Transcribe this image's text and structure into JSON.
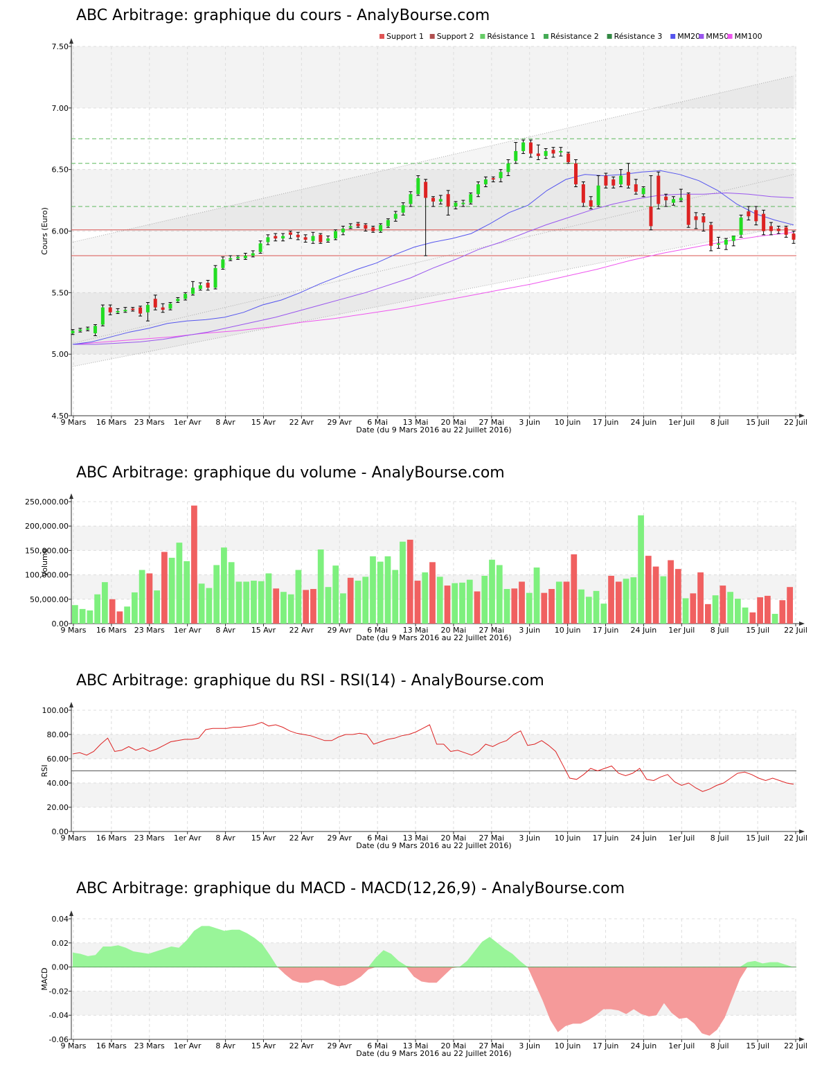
{
  "chart_data": [
    {
      "type": "candlestick",
      "title": "ABC Arbitrage: graphique du cours - AnalyBourse.com",
      "ylabel": "Cours (Euro)",
      "xlabel": "Date (du 9 Mars 2016 au 22 Juillet 2016)",
      "ylim": [
        4.5,
        7.5
      ],
      "yticks": [
        "4.50",
        "5.00",
        "5.50",
        "6.00",
        "6.50",
        "7.00",
        "7.50"
      ],
      "xticks": [
        "9 Mars",
        "16 Mars",
        "23 Mars",
        "1er Avr",
        "8 Avr",
        "15 Avr",
        "22 Avr",
        "29 Avr",
        "6 Mai",
        "13 Mai",
        "20 Mai",
        "27 Mai",
        "3 Juin",
        "10 Juin",
        "17 Juin",
        "24 Juin",
        "1er Juil",
        "8 Juil",
        "15 Juil",
        "22 Juil"
      ],
      "legend": [
        {
          "label": "Support 1",
          "color": "#e05555"
        },
        {
          "label": "Support 2",
          "color": "#b05050"
        },
        {
          "label": "Résistance 1",
          "color": "#66cc66"
        },
        {
          "label": "Résistance 2",
          "color": "#44aa55"
        },
        {
          "label": "Résistance 3",
          "color": "#338844"
        },
        {
          "label": "MM20",
          "color": "#5555ee"
        },
        {
          "label": "MM50",
          "color": "#9955ee"
        },
        {
          "label": "MM100",
          "color": "#ee55ee"
        }
      ],
      "support": [
        6.01,
        5.8
      ],
      "resistance": [
        6.2,
        6.55,
        6.75
      ],
      "close": [
        5.19,
        5.2,
        5.21,
        5.23,
        5.38,
        5.34,
        5.35,
        5.36,
        5.36,
        5.33,
        5.4,
        5.38,
        5.36,
        5.41,
        5.45,
        5.49,
        5.54,
        5.56,
        5.54,
        5.7,
        5.77,
        5.78,
        5.79,
        5.8,
        5.82,
        5.9,
        5.95,
        5.94,
        5.96,
        5.97,
        5.95,
        5.93,
        5.96,
        5.91,
        5.94,
        6.0,
        6.02,
        6.04,
        6.04,
        6.02,
        6.0,
        6.05,
        6.09,
        6.14,
        6.21,
        6.3,
        6.43,
        6.27,
        6.24,
        6.26,
        6.2,
        6.23,
        6.23,
        6.3,
        6.38,
        6.42,
        6.42,
        6.48,
        6.55,
        6.65,
        6.72,
        6.63,
        6.61,
        6.65,
        6.63,
        6.65,
        6.56,
        6.38,
        6.23,
        6.2,
        6.37,
        6.37,
        6.37,
        6.45,
        6.37,
        6.32,
        6.35,
        6.04,
        6.22,
        6.25,
        6.26,
        6.27,
        6.05,
        6.09,
        6.07,
        5.88,
        5.9,
        5.93,
        5.96,
        6.11,
        6.12,
        6.08,
        6.0,
        6.0,
        6.0,
        5.97,
        5.93
      ],
      "open": [
        5.17,
        5.19,
        5.2,
        5.17,
        5.24,
        5.38,
        5.34,
        5.35,
        5.37,
        5.38,
        5.34,
        5.45,
        5.38,
        5.37,
        5.43,
        5.45,
        5.49,
        5.53,
        5.58,
        5.54,
        5.7,
        5.78,
        5.79,
        5.78,
        5.8,
        5.83,
        5.91,
        5.96,
        5.94,
        5.99,
        5.97,
        5.95,
        5.92,
        5.97,
        5.92,
        5.94,
        5.99,
        6.04,
        6.06,
        6.05,
        6.03,
        6.0,
        6.04,
        6.1,
        6.15,
        6.22,
        6.3,
        6.4,
        6.27,
        6.24,
        6.3,
        6.2,
        6.23,
        6.23,
        6.3,
        6.38,
        6.43,
        6.43,
        6.48,
        6.57,
        6.65,
        6.72,
        6.63,
        6.61,
        6.66,
        6.65,
        6.63,
        6.55,
        6.38,
        6.25,
        6.21,
        6.45,
        6.42,
        6.38,
        6.48,
        6.38,
        6.3,
        6.2,
        6.45,
        6.28,
        6.23,
        6.25,
        6.3,
        6.12,
        6.12,
        6.05,
        5.9,
        5.89,
        5.92,
        5.97,
        6.16,
        6.17,
        6.14,
        6.04,
        6.02,
        6.03,
        5.98
      ],
      "high": [
        5.2,
        5.21,
        5.22,
        5.24,
        5.4,
        5.4,
        5.37,
        5.38,
        5.38,
        5.39,
        5.42,
        5.48,
        5.41,
        5.42,
        5.46,
        5.5,
        5.59,
        5.58,
        5.6,
        5.72,
        5.79,
        5.8,
        5.8,
        5.82,
        5.84,
        5.92,
        5.97,
        5.98,
        5.98,
        6.0,
        5.99,
        5.97,
        5.99,
        5.98,
        5.96,
        6.01,
        6.04,
        6.06,
        6.07,
        6.06,
        6.04,
        6.06,
        6.1,
        6.16,
        6.23,
        6.32,
        6.45,
        6.42,
        6.28,
        6.29,
        6.33,
        6.24,
        6.25,
        6.31,
        6.4,
        6.44,
        6.44,
        6.5,
        6.58,
        6.72,
        6.74,
        6.74,
        6.7,
        6.67,
        6.68,
        6.68,
        6.64,
        6.58,
        6.4,
        6.28,
        6.45,
        6.47,
        6.44,
        6.5,
        6.55,
        6.42,
        6.36,
        6.45,
        6.48,
        6.3,
        6.28,
        6.34,
        6.31,
        6.15,
        6.14,
        6.07,
        5.95,
        5.94,
        5.96,
        6.13,
        6.2,
        6.2,
        6.17,
        6.07,
        6.04,
        6.04,
        6.0
      ],
      "low": [
        5.16,
        5.18,
        5.19,
        5.15,
        5.23,
        5.32,
        5.33,
        5.34,
        5.35,
        5.31,
        5.27,
        5.36,
        5.34,
        5.36,
        5.42,
        5.44,
        5.48,
        5.52,
        5.52,
        5.53,
        5.69,
        5.76,
        5.77,
        5.77,
        5.79,
        5.82,
        5.89,
        5.92,
        5.92,
        5.94,
        5.93,
        5.91,
        5.9,
        5.9,
        5.91,
        5.93,
        5.97,
        6.02,
        6.03,
        6.0,
        5.99,
        5.99,
        6.03,
        6.08,
        6.13,
        6.2,
        6.29,
        5.8,
        6.2,
        6.22,
        6.13,
        6.18,
        6.2,
        6.22,
        6.28,
        6.36,
        6.4,
        6.4,
        6.45,
        6.55,
        6.63,
        6.6,
        6.58,
        6.59,
        6.6,
        6.61,
        6.55,
        6.36,
        6.2,
        6.18,
        6.2,
        6.35,
        6.35,
        6.36,
        6.35,
        6.3,
        6.28,
        6.01,
        6.18,
        6.2,
        6.21,
        6.24,
        6.03,
        6.02,
        6.0,
        5.84,
        5.86,
        5.85,
        5.88,
        5.95,
        6.09,
        6.05,
        5.97,
        5.97,
        5.98,
        5.95,
        5.9
      ],
      "mm20": [
        5.08,
        5.1,
        5.14,
        5.18,
        5.21,
        5.25,
        5.27,
        5.28,
        5.3,
        5.34,
        5.4,
        5.44,
        5.5,
        5.57,
        5.63,
        5.69,
        5.74,
        5.81,
        5.87,
        5.91,
        5.94,
        5.98,
        6.06,
        6.15,
        6.21,
        6.33,
        6.42,
        6.46,
        6.45,
        6.46,
        6.48,
        6.49,
        6.46,
        6.41,
        6.33,
        6.22,
        6.14,
        6.09,
        6.05
      ],
      "mm50": [
        5.08,
        5.08,
        5.09,
        5.1,
        5.12,
        5.15,
        5.18,
        5.22,
        5.26,
        5.3,
        5.35,
        5.4,
        5.45,
        5.5,
        5.56,
        5.62,
        5.7,
        5.77,
        5.85,
        5.91,
        5.98,
        6.05,
        6.11,
        6.17,
        6.22,
        6.26,
        6.29,
        6.3,
        6.3,
        6.31,
        6.3,
        6.28,
        6.27
      ],
      "mm100": [
        5.08,
        5.1,
        5.12,
        5.14,
        5.17,
        5.19,
        5.22,
        5.26,
        5.29,
        5.33,
        5.37,
        5.42,
        5.47,
        5.52,
        5.57,
        5.63,
        5.69,
        5.76,
        5.82,
        5.87,
        5.92,
        5.96,
        5.99
      ]
    },
    {
      "type": "bar",
      "title": "ABC Arbitrage: graphique du volume - AnalyBourse.com",
      "ylabel": "Volume",
      "xlabel": "Date (du 9 Mars 2016 au 22 Juillet 2016)",
      "ylim": [
        0,
        250000
      ],
      "yticks": [
        "0.00",
        "50,000.00",
        "100,000.00",
        "150,000.00",
        "200,000.00",
        "250,000.00"
      ],
      "xticks": [
        "9 Mars",
        "16 Mars",
        "23 Mars",
        "1er Avr",
        "8 Avr",
        "15 Avr",
        "22 Avr",
        "29 Avr",
        "6 Mai",
        "13 Mai",
        "20 Mai",
        "27 Mai",
        "3 Juin",
        "10 Juin",
        "17 Juin",
        "24 Juin",
        "1er Juil",
        "8 Juil",
        "15 Juil",
        "22 Juil"
      ],
      "values": [
        38000,
        30000,
        27000,
        60000,
        85000,
        50000,
        25000,
        35000,
        64000,
        110000,
        103000,
        68000,
        147000,
        135000,
        166000,
        128000,
        242000,
        82000,
        73000,
        120000,
        156000,
        126000,
        86000,
        86000,
        88000,
        87000,
        103000,
        72000,
        65000,
        60000,
        110000,
        69000,
        71000,
        152000,
        75000,
        119000,
        62000,
        94000,
        88000,
        96000,
        138000,
        127000,
        138000,
        110000,
        168000,
        172000,
        88000,
        105000,
        126000,
        96000,
        78000,
        83000,
        84000,
        90000,
        66000,
        98000,
        131000,
        120000,
        71000,
        72000,
        86000,
        63000,
        115000,
        63000,
        71000,
        86000,
        86000,
        142000,
        70000,
        55000,
        67000,
        41000,
        98000,
        86000,
        92000,
        95000,
        222000,
        139000,
        117000,
        97000,
        130000,
        112000,
        52000,
        62000,
        105000,
        40000,
        58000,
        78000,
        65000,
        51000,
        33000,
        23000,
        54000,
        57000,
        20000,
        48000,
        75000
      ],
      "up": [
        1,
        1,
        1,
        1,
        1,
        0,
        0,
        1,
        1,
        1,
        0,
        1,
        0,
        1,
        1,
        1,
        0,
        1,
        1,
        1,
        1,
        1,
        1,
        1,
        1,
        1,
        1,
        0,
        1,
        1,
        1,
        0,
        0,
        1,
        1,
        1,
        1,
        0,
        1,
        1,
        1,
        1,
        1,
        1,
        1,
        0,
        0,
        1,
        0,
        1,
        0,
        1,
        1,
        1,
        0,
        1,
        1,
        1,
        1,
        0,
        0,
        1,
        1,
        0,
        0,
        1,
        0,
        0,
        1,
        1,
        1,
        1,
        0,
        0,
        1,
        1,
        1,
        0,
        0,
        1,
        0,
        0,
        1,
        0,
        0,
        0,
        1,
        0,
        1,
        1,
        1,
        0,
        0,
        0,
        1,
        0,
        0
      ]
    },
    {
      "type": "line",
      "title": "ABC Arbitrage: graphique du RSI - RSI(14) - AnalyBourse.com",
      "ylabel": "RSI",
      "xlabel": "Date (du 9 Mars 2016 au 22 Juillet 2016)",
      "ylim": [
        0,
        100
      ],
      "yticks": [
        "0.00",
        "20.00",
        "40.00",
        "60.00",
        "80.00",
        "100.00"
      ],
      "xticks": [
        "9 Mars",
        "16 Mars",
        "23 Mars",
        "1er Avr",
        "8 Avr",
        "15 Avr",
        "22 Avr",
        "29 Avr",
        "6 Mai",
        "13 Mai",
        "20 Mai",
        "27 Mai",
        "3 Juin",
        "10 Juin",
        "17 Juin",
        "24 Juin",
        "1er Juil",
        "8 Juil",
        "15 Juil",
        "22 Juil"
      ],
      "reference": 50,
      "values": [
        64,
        65,
        63,
        66,
        72,
        77,
        66,
        67,
        70,
        67,
        69,
        66,
        68,
        71,
        74,
        75,
        76,
        76,
        77,
        84,
        85,
        85,
        85,
        86,
        86,
        87,
        88,
        90,
        87,
        88,
        86,
        83,
        81,
        80,
        79,
        77,
        75,
        75,
        78,
        80,
        80,
        81,
        80,
        72,
        74,
        76,
        77,
        79,
        80,
        82,
        85,
        88,
        72,
        72,
        66,
        67,
        65,
        63,
        66,
        72,
        70,
        73,
        75,
        80,
        83,
        71,
        72,
        75,
        71,
        66,
        55,
        44,
        43,
        47,
        52,
        50,
        52,
        54,
        48,
        46,
        48,
        52,
        43,
        42,
        45,
        47,
        41,
        38,
        40,
        36,
        33,
        35,
        38,
        40,
        44,
        48,
        49,
        47,
        44,
        42,
        44,
        42,
        40,
        39
      ]
    },
    {
      "type": "area",
      "title": "ABC Arbitrage: graphique du MACD - MACD(12,26,9) - AnalyBourse.com",
      "ylabel": "MACD",
      "xlabel": "Date (du 9 Mars 2016 au 22 Juillet 2016)",
      "ylim": [
        -0.06,
        0.04
      ],
      "yticks": [
        "-0.06",
        "-0.04",
        "-0.02",
        "0.00",
        "0.02",
        "0.04"
      ],
      "xticks": [
        "9 Mars",
        "16 Mars",
        "23 Mars",
        "1er Avr",
        "8 Avr",
        "15 Avr",
        "22 Avr",
        "29 Avr",
        "6 Mai",
        "13 Mai",
        "20 Mai",
        "27 Mai",
        "3 Juin",
        "10 Juin",
        "17 Juin",
        "24 Juin",
        "1er Juil",
        "8 Juil",
        "15 Juil",
        "22 Juil"
      ],
      "values": [
        0.012,
        0.011,
        0.009,
        0.01,
        0.017,
        0.017,
        0.018,
        0.016,
        0.013,
        0.012,
        0.011,
        0.013,
        0.015,
        0.017,
        0.016,
        0.022,
        0.03,
        0.034,
        0.034,
        0.032,
        0.03,
        0.031,
        0.031,
        0.028,
        0.024,
        0.019,
        0.01,
        0.0,
        -0.006,
        -0.011,
        -0.013,
        -0.013,
        -0.011,
        -0.011,
        -0.014,
        -0.016,
        -0.015,
        -0.012,
        -0.008,
        -0.002,
        0.008,
        0.014,
        0.011,
        0.005,
        0.001,
        -0.008,
        -0.012,
        -0.013,
        -0.013,
        -0.007,
        -0.001,
        0.0,
        0.005,
        0.013,
        0.021,
        0.025,
        0.02,
        0.015,
        0.011,
        0.005,
        0.0,
        -0.014,
        -0.028,
        -0.044,
        -0.054,
        -0.049,
        -0.047,
        -0.047,
        -0.044,
        -0.04,
        -0.035,
        -0.035,
        -0.036,
        -0.039,
        -0.035,
        -0.039,
        -0.041,
        -0.04,
        -0.03,
        -0.038,
        -0.043,
        -0.042,
        -0.047,
        -0.055,
        -0.057,
        -0.052,
        -0.042,
        -0.026,
        -0.01,
        0.004,
        0.005,
        0.003,
        0.004,
        0.004,
        0.002,
        0.0
      ]
    }
  ]
}
